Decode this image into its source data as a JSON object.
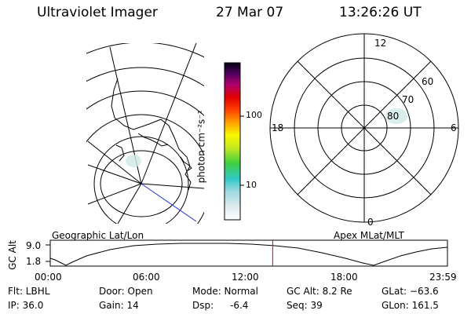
{
  "header": {
    "title": "Ultraviolet Imager",
    "date": "27 Mar 07",
    "time": "13:26:26 UT"
  },
  "colorbar": {
    "label": "photon cm⁻²s⁻¹",
    "tick_100": "100",
    "tick_10": "10",
    "scale": "log"
  },
  "polar_plot": {
    "mlt_top": "12",
    "mlt_left": "18",
    "mlt_right": "6",
    "mlt_bottom": "0",
    "lat_60": "60",
    "lat_70": "70",
    "lat_80": "80"
  },
  "orbit_plot": {
    "left_title": "Geographic Lat/Lon",
    "right_title": "Apex MLat/MLT",
    "ylabel": "GC Alt",
    "y_max": "9.0",
    "y_min": "1.8",
    "x_ticks": [
      "00:00",
      "06:00",
      "12:00",
      "18:00",
      "23:59"
    ],
    "current_time_hours": 13.44
  },
  "footer": {
    "flt": "Flt: LBHL",
    "ip": "IP: 36.0",
    "door": "Door: Open",
    "gain": "Gain: 14",
    "mode": "Mode: Normal",
    "dsp_label": "Dsp:",
    "dsp_value": "-6.4",
    "gc_alt": "GC Alt: 8.2 Re",
    "seq": "Seq: 39",
    "glat": "GLat: −63.6",
    "glon": "GLon: 161.5"
  }
}
